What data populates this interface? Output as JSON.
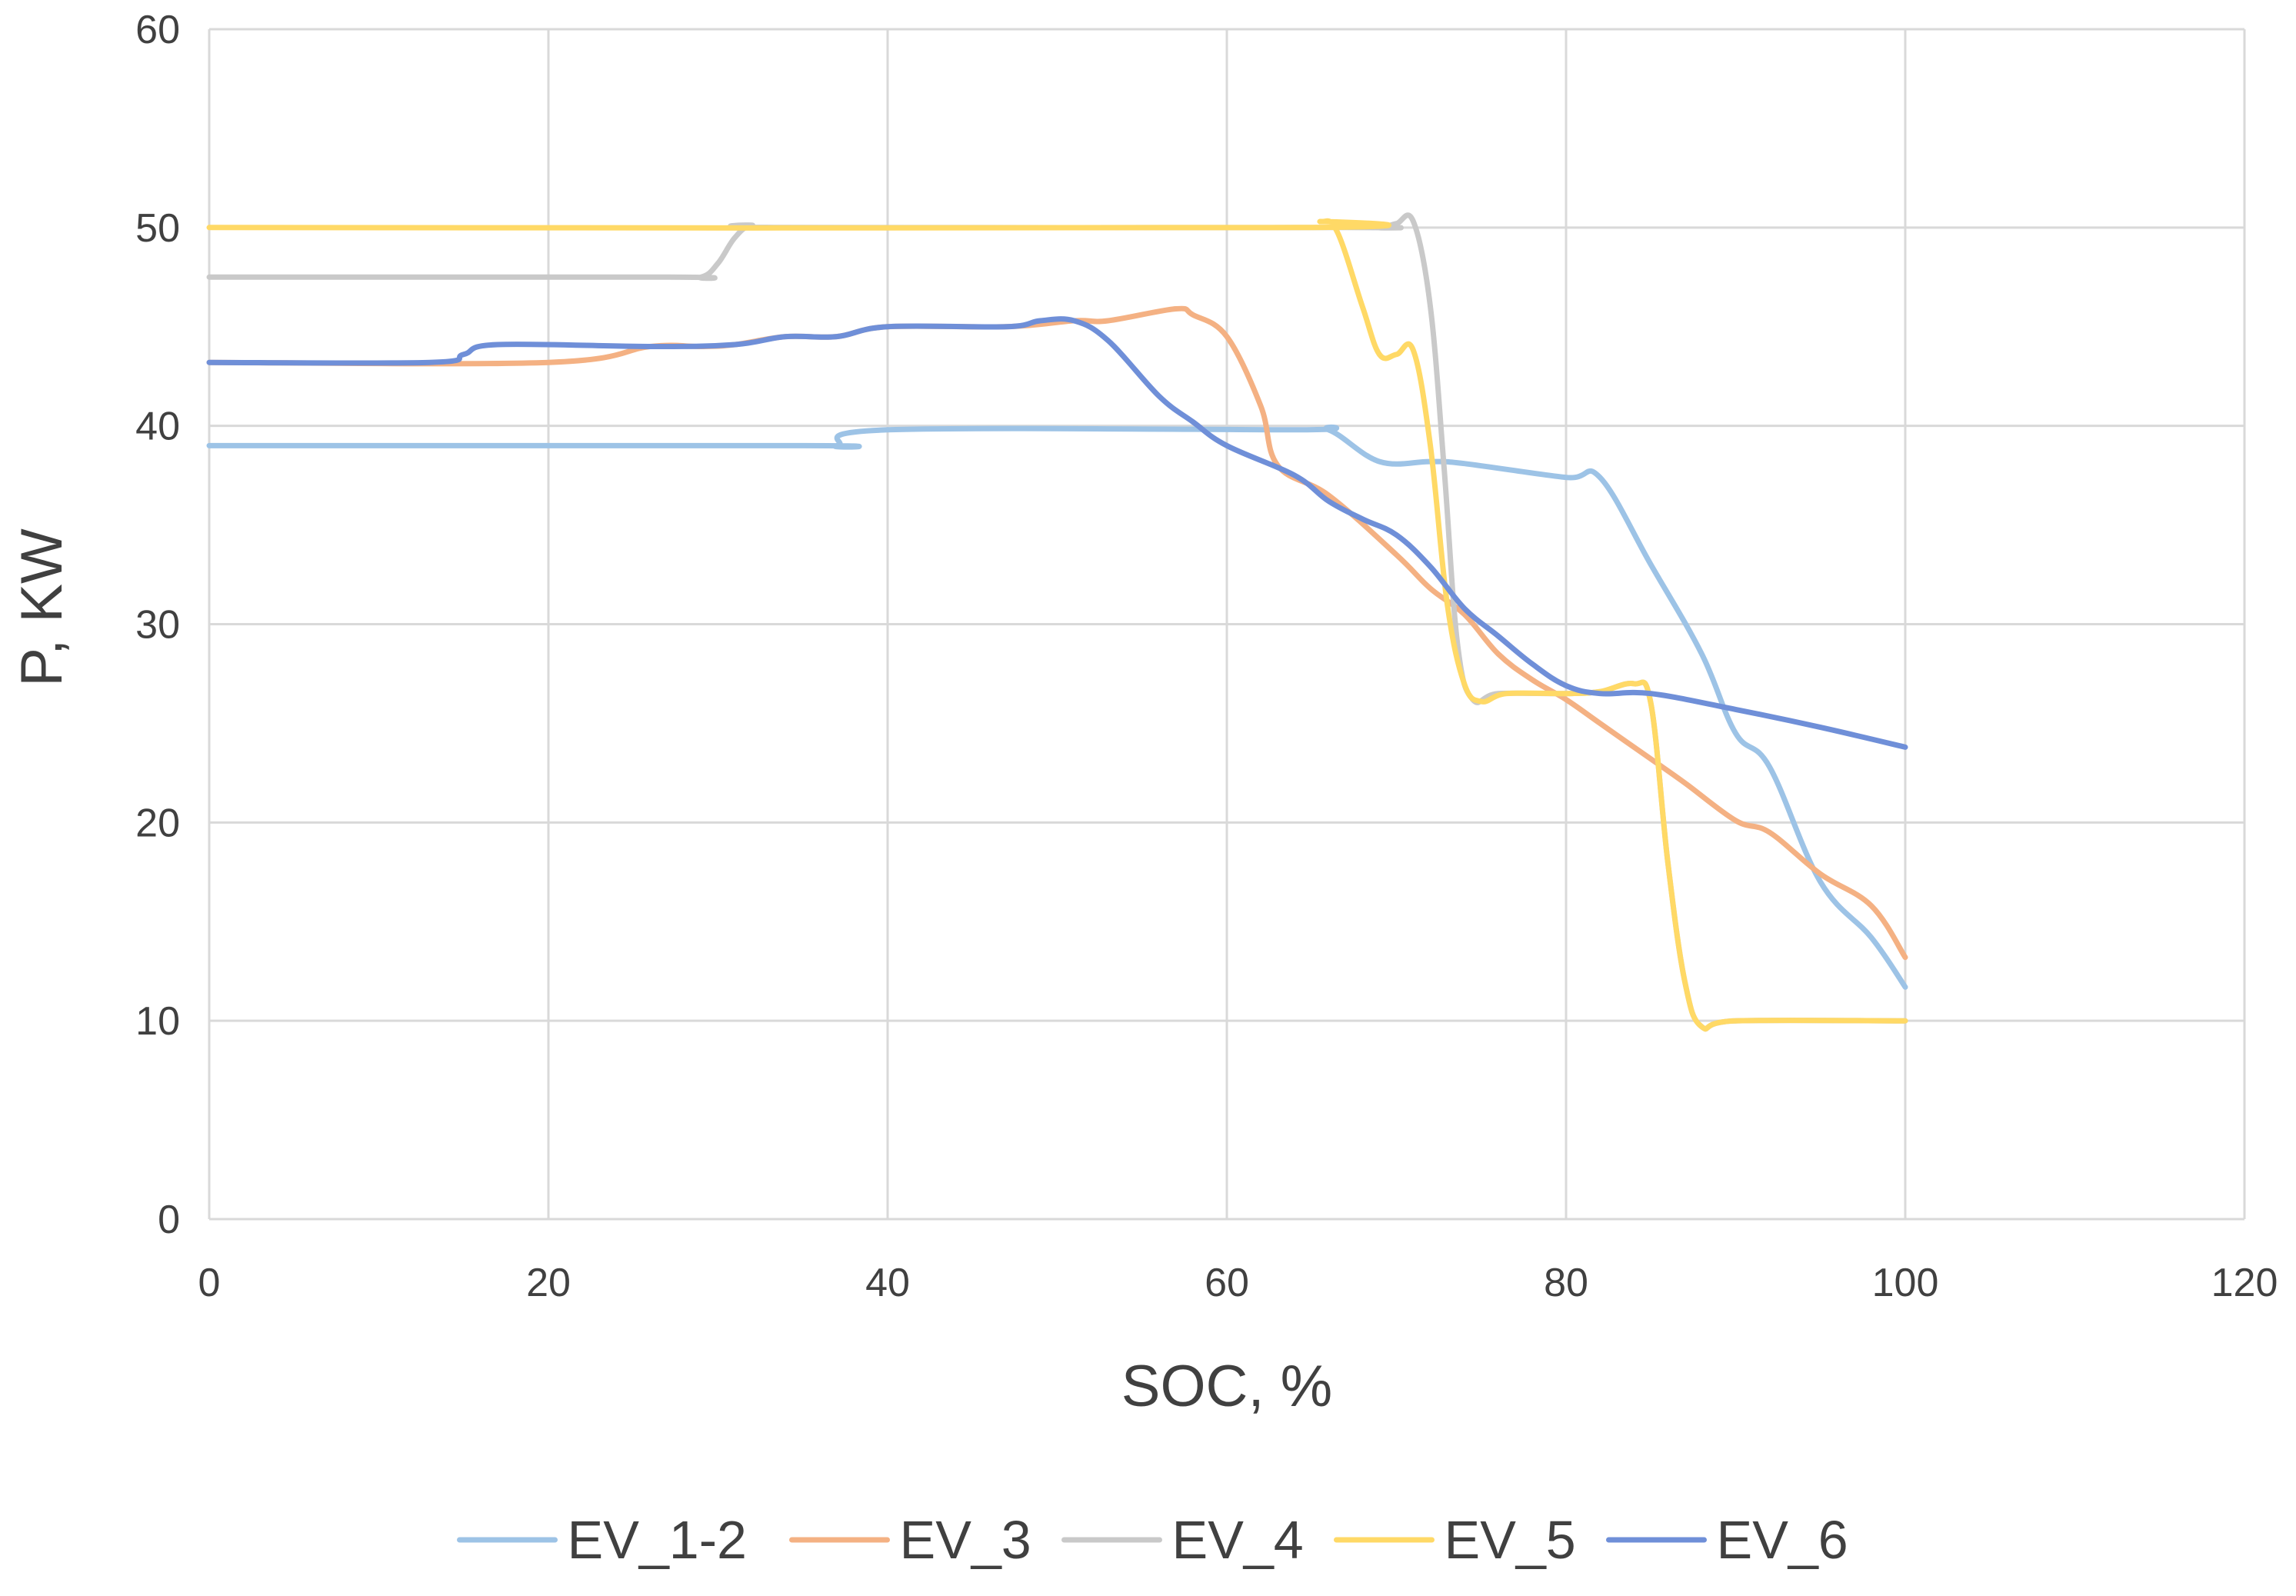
{
  "chart_data": {
    "type": "line",
    "title": "",
    "xlabel": "SOC, %",
    "ylabel": "P, KW",
    "xlim": [
      0,
      120
    ],
    "ylim": [
      0,
      60
    ],
    "x_ticks": [
      0,
      20,
      40,
      60,
      80,
      100,
      120
    ],
    "y_ticks": [
      0,
      10,
      20,
      30,
      40,
      50,
      60
    ],
    "grid": true,
    "legend_position": "bottom",
    "series": [
      {
        "name": "EV_1-2",
        "color": "#9dc3e6",
        "points": [
          [
            0,
            39
          ],
          [
            35,
            39
          ],
          [
            37,
            39
          ],
          [
            40,
            39.8
          ],
          [
            64,
            39.8
          ],
          [
            66,
            39.8
          ],
          [
            69,
            38.2
          ],
          [
            72,
            38.2
          ],
          [
            74,
            38.1
          ],
          [
            80,
            37.4
          ],
          [
            82,
            37.4
          ],
          [
            85,
            33
          ],
          [
            88,
            28.5
          ],
          [
            90,
            24.5
          ],
          [
            92,
            22.8
          ],
          [
            95,
            17
          ],
          [
            98,
            14.2
          ],
          [
            100,
            11.7
          ]
        ]
      },
      {
        "name": "EV_3",
        "color": "#f4b183",
        "points": [
          [
            0,
            43.2
          ],
          [
            20,
            43.2
          ],
          [
            26,
            44
          ],
          [
            29,
            44
          ],
          [
            31,
            44.1
          ],
          [
            34,
            44.5
          ],
          [
            37,
            44.5
          ],
          [
            40,
            45
          ],
          [
            47,
            45
          ],
          [
            51,
            45.3
          ],
          [
            53,
            45.3
          ],
          [
            57,
            45.9
          ],
          [
            58,
            45.6
          ],
          [
            60,
            44.5
          ],
          [
            62,
            41
          ],
          [
            63,
            38
          ],
          [
            66,
            36.5
          ],
          [
            70,
            33.5
          ],
          [
            72,
            31.8
          ],
          [
            74,
            30.5
          ],
          [
            76,
            28.5
          ],
          [
            78,
            27.2
          ],
          [
            80,
            26.2
          ],
          [
            82,
            25
          ],
          [
            85,
            23.2
          ],
          [
            87,
            22
          ],
          [
            90,
            20.1
          ],
          [
            92,
            19.5
          ],
          [
            95,
            17.4
          ],
          [
            98,
            15.8
          ],
          [
            100,
            13.2
          ]
        ]
      },
      {
        "name": "EV_4",
        "color": "#c9c9c9",
        "points": [
          [
            0,
            47.5
          ],
          [
            27,
            47.5
          ],
          [
            29,
            47.5
          ],
          [
            30,
            48.2
          ],
          [
            31,
            49.5
          ],
          [
            32,
            50.1
          ],
          [
            34,
            50
          ],
          [
            67,
            50
          ],
          [
            69,
            50
          ],
          [
            70,
            50.2
          ],
          [
            71,
            50.3
          ],
          [
            72,
            46
          ],
          [
            72.8,
            38
          ],
          [
            73.6,
            29
          ],
          [
            74.5,
            26.2
          ],
          [
            76,
            26.5
          ],
          [
            80,
            26.5
          ],
          [
            82,
            26.6
          ],
          [
            84,
            27
          ],
          [
            85,
            26
          ],
          [
            86,
            18
          ],
          [
            87,
            12
          ],
          [
            88,
            9.7
          ],
          [
            90,
            10
          ],
          [
            100,
            10
          ]
        ]
      },
      {
        "name": "EV_5",
        "color": "#ffd966",
        "points": [
          [
            0,
            50
          ],
          [
            64,
            50
          ],
          [
            65.5,
            50.3
          ],
          [
            66.5,
            49.8
          ],
          [
            68,
            46
          ],
          [
            69,
            43.6
          ],
          [
            70,
            43.6
          ],
          [
            71,
            43.8
          ],
          [
            72,
            39
          ],
          [
            73,
            31
          ],
          [
            74,
            27
          ],
          [
            75,
            26.1
          ],
          [
            76.5,
            26.5
          ],
          [
            80,
            26.5
          ],
          [
            82,
            26.6
          ],
          [
            84,
            27
          ],
          [
            85,
            26
          ],
          [
            86,
            18
          ],
          [
            87,
            12
          ],
          [
            88,
            9.7
          ],
          [
            90,
            10
          ],
          [
            100,
            10
          ]
        ]
      },
      {
        "name": "EV_6",
        "color": "#6f8fd8",
        "points": [
          [
            0,
            43.2
          ],
          [
            13,
            43.2
          ],
          [
            15,
            43.6
          ],
          [
            17,
            44.1
          ],
          [
            26,
            44
          ],
          [
            31,
            44.1
          ],
          [
            34,
            44.5
          ],
          [
            37,
            44.5
          ],
          [
            40,
            45
          ],
          [
            47,
            45
          ],
          [
            49,
            45.3
          ],
          [
            51,
            45.3
          ],
          [
            53,
            44.3
          ],
          [
            56,
            41.5
          ],
          [
            58,
            40.2
          ],
          [
            60,
            39
          ],
          [
            64,
            37.5
          ],
          [
            66,
            36.2
          ],
          [
            68,
            35.3
          ],
          [
            70,
            34.5
          ],
          [
            72,
            32.9
          ],
          [
            74,
            30.8
          ],
          [
            76,
            29.4
          ],
          [
            78,
            28
          ],
          [
            80,
            26.9
          ],
          [
            82,
            26.5
          ],
          [
            85,
            26.5
          ],
          [
            90,
            25.7
          ],
          [
            95,
            24.8
          ],
          [
            100,
            23.8
          ]
        ]
      }
    ]
  }
}
